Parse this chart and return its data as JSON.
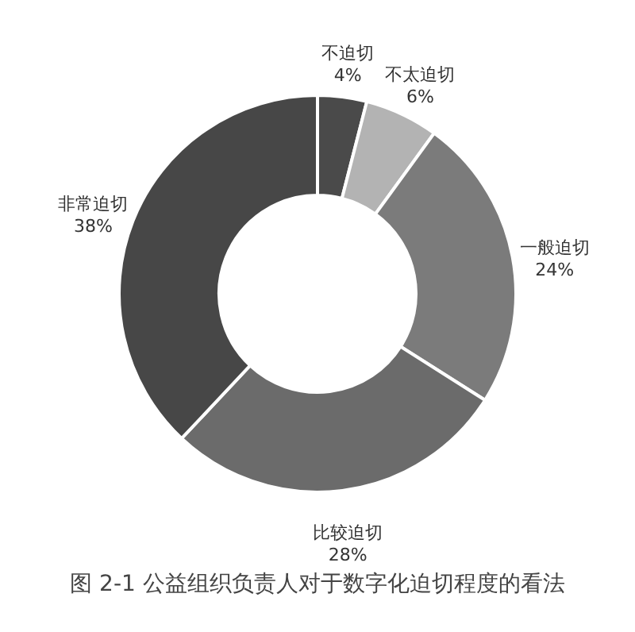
{
  "chart_data": {
    "type": "donut",
    "categories": [
      "不迫切",
      "不太迫切",
      "一般迫切",
      "比较迫切",
      "非常迫切"
    ],
    "values": [
      4,
      6,
      24,
      28,
      38
    ],
    "colors": [
      "#4a4a4a",
      "#b3b3b3",
      "#7b7b7b",
      "#6b6b6b",
      "#474747"
    ],
    "title": "图 2-1 公益组织负责人对于数字化迫切程度的看法",
    "value_labels": [
      "4%",
      "6%",
      "24%",
      "28%",
      "38%"
    ]
  }
}
